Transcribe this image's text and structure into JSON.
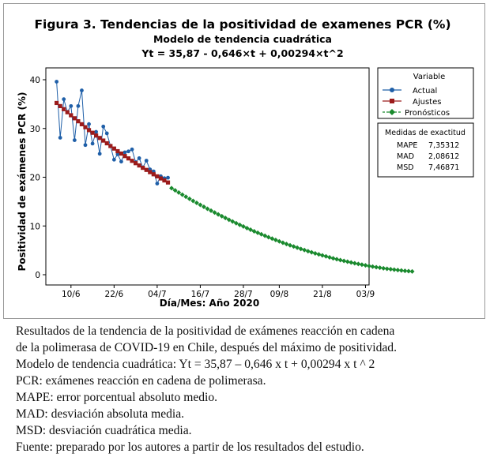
{
  "chart_data": {
    "type": "line",
    "title": "Figura 3.  Tendencias de la positividad de examenes PCR (%)",
    "subtitle": "Modelo de tendencia cuadrática",
    "equation": "Yt = 35,87 - 0,646×t + 0,00294×t^2",
    "xlabel": "Día/Mes: Año 2020",
    "ylabel": "Positividad de exámenes PCR (%)",
    "ylim": [
      0,
      40
    ],
    "yticks": [
      "0",
      "10",
      "20",
      "30",
      "40"
    ],
    "xlim": [
      -2,
      88
    ],
    "xticks": [
      {
        "t": 5,
        "label": "10/6"
      },
      {
        "t": 17,
        "label": "22/6"
      },
      {
        "t": 29,
        "label": "04/7"
      },
      {
        "t": 41,
        "label": "16/7"
      },
      {
        "t": 53,
        "label": "28/7"
      },
      {
        "t": 63,
        "label": "09/8"
      },
      {
        "t": 75,
        "label": "21/8"
      },
      {
        "t": 87,
        "label": "03/9"
      }
    ],
    "series": [
      {
        "name": "Actual",
        "color": "#1f5fa8",
        "marker": "circle",
        "t": [
          1,
          2,
          3,
          4,
          5,
          6,
          7,
          8,
          9,
          10,
          11,
          12,
          13,
          14,
          15,
          16,
          17,
          18,
          19,
          20,
          21,
          22,
          23,
          24,
          25,
          26,
          27,
          28,
          29,
          30,
          31,
          32
        ],
        "values": [
          39.6,
          28.1,
          36.0,
          33.4,
          34.6,
          27.6,
          34.6,
          37.8,
          26.6,
          30.9,
          26.9,
          29.3,
          24.8,
          30.4,
          29.0,
          26.4,
          23.6,
          24.7,
          23.2,
          25.1,
          25.3,
          25.7,
          23.1,
          23.9,
          22.0,
          23.4,
          21.6,
          21.2,
          18.7,
          20.2,
          19.8,
          19.9
        ]
      },
      {
        "name": "Ajustes",
        "color": "#9b1b1b",
        "marker": "square",
        "t": [
          1,
          2,
          3,
          4,
          5,
          6,
          7,
          8,
          9,
          10,
          11,
          12,
          13,
          14,
          15,
          16,
          17,
          18,
          19,
          20,
          21,
          22,
          23,
          24,
          25,
          26,
          27,
          28,
          29,
          30,
          31,
          32
        ],
        "values": [
          35.23,
          34.59,
          33.96,
          33.33,
          32.71,
          32.09,
          31.48,
          30.87,
          30.26,
          29.66,
          29.12,
          28.55,
          28.05,
          27.52,
          26.96,
          26.4,
          25.88,
          25.34,
          24.85,
          24.34,
          23.86,
          23.36,
          22.88,
          22.41,
          21.93,
          21.5,
          21.04,
          20.6,
          20.18,
          19.75,
          19.34,
          18.92
        ]
      },
      {
        "name": "Pronósticos",
        "color": "#1a8a2e",
        "marker": "diamond",
        "t_start": 33,
        "t_end": 100
      }
    ],
    "legend": {
      "title": "Variable",
      "items": [
        "Actual",
        "Ajustes",
        "Pronósticos"
      ],
      "position": "top-right"
    },
    "accuracy": {
      "title": "Medidas de exactitud",
      "rows": [
        {
          "label": "MAPE",
          "value": "7,35312"
        },
        {
          "label": "MAD",
          "value": "2,08612"
        },
        {
          "label": "MSD",
          "value": "7,46871"
        }
      ]
    },
    "grid": false
  },
  "caption": {
    "line1": "Resultados de la tendencia de la positividad de exámenes reacción en cadena",
    "line2": "de la polimerasa de COVID-19 en Chile, después del máximo de positividad.",
    "line3": "Modelo de tendencia cuadrática: Yt = 35,87 – 0,646 x t + 0,00294 x t ^ 2",
    "line4": "PCR: exámenes reacción en cadena de polimerasa.",
    "line5": "MAPE: error porcentual absoluto medio.",
    "line6": "MAD: desviación absoluta media.",
    "line7": "MSD: desviación cuadrática media.",
    "line8": "Fuente: preparado por los autores a partir de los resultados del estudio."
  }
}
